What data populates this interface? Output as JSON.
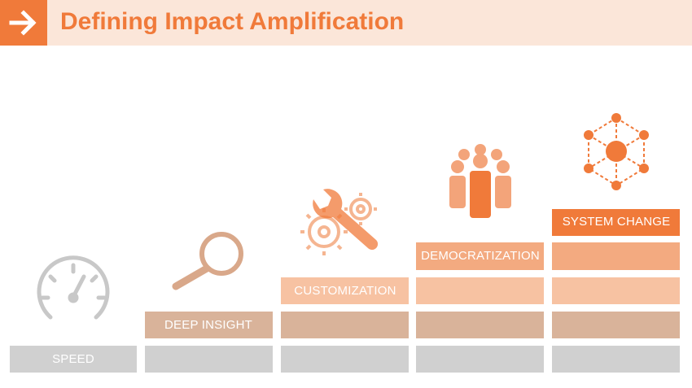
{
  "header": {
    "title": "Defining Impact Amplification"
  },
  "steps": [
    {
      "label": "SPEED"
    },
    {
      "label": "DEEP INSIGHT"
    },
    {
      "label": "CUSTOMIZATION"
    },
    {
      "label": "DEMOCRATIZATION"
    },
    {
      "label": "SYSTEM CHANGE"
    }
  ]
}
